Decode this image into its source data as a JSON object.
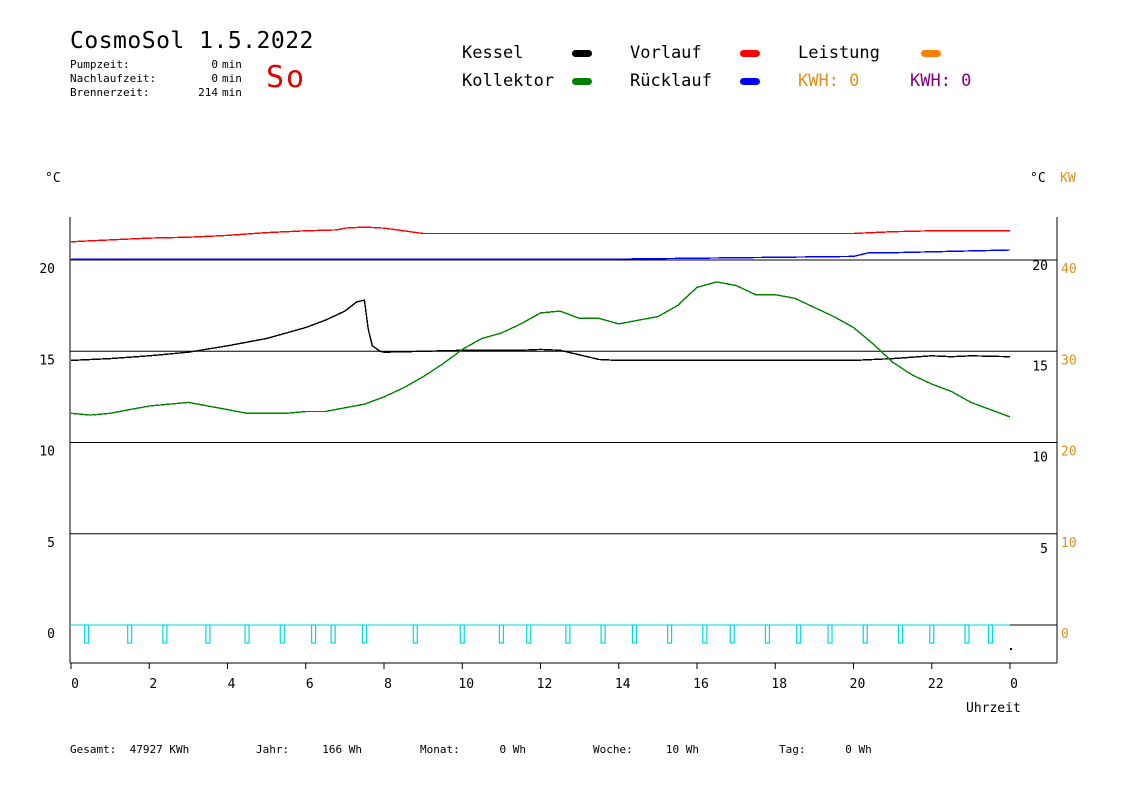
{
  "header": {
    "title": "CosmoSol 1.5.2022",
    "day": "So",
    "stats": [
      {
        "label": "Pumpzeit:",
        "value": "0",
        "unit": "min"
      },
      {
        "label": "Nachlaufzeit:",
        "value": "0",
        "unit": "min"
      },
      {
        "label": "Brennerzeit:",
        "value": "214",
        "unit": "min"
      }
    ]
  },
  "legend": {
    "kessel": {
      "label": "Kessel",
      "color": "#000000"
    },
    "kollektor": {
      "label": "Kollektor",
      "color": "#008000"
    },
    "vorlauf": {
      "label": "Vorlauf",
      "color": "#ff0000"
    },
    "ruecklauf": {
      "label": "Rücklauf",
      "color": "#0000ff"
    },
    "leistung": {
      "label": "Leistung",
      "color": "#ff8000"
    },
    "kwh_orange": "KWH: 0",
    "kwh_purple": "KWH: 0",
    "kwh_orange_color": "#e0901c",
    "kwh_purple_color": "#800080"
  },
  "axes": {
    "left_unit": "°C",
    "right_unit": "°C",
    "right_unit2": "KW",
    "x_label": "Uhrzeit"
  },
  "chart_data": {
    "type": "line",
    "xlabel": "Uhrzeit",
    "ylabel": "°C",
    "x_ticks": [
      "0",
      "2",
      "4",
      "6",
      "8",
      "10",
      "12",
      "14",
      "16",
      "18",
      "20",
      "22",
      "0"
    ],
    "xlim": [
      0,
      24
    ],
    "ylim": [
      -1.5,
      22.5
    ],
    "left_ticks": [
      0,
      5,
      10,
      15,
      20
    ],
    "right_ticks": [
      "5",
      "10",
      "15",
      "20"
    ],
    "right_ticks_y": [
      5,
      10,
      15,
      20.5
    ],
    "kw_ticks": [
      "0",
      "10",
      "20",
      "30",
      "40"
    ],
    "kw_ticks_y": [
      0,
      5,
      10,
      15,
      20
    ],
    "grid_lines_y": [
      0,
      5,
      10,
      15,
      20
    ],
    "series": [
      {
        "name": "Vorlauf",
        "color": "#ff0000",
        "x": [
          0,
          0.5,
          1,
          2,
          3,
          4,
          5,
          6,
          6.8,
          7,
          7.5,
          8,
          8.5,
          9,
          10,
          12,
          14,
          15,
          16,
          18,
          19.5,
          20,
          21,
          22,
          23,
          24
        ],
        "y": [
          21.0,
          21.05,
          21.1,
          21.2,
          21.25,
          21.35,
          21.5,
          21.6,
          21.65,
          21.75,
          21.8,
          21.75,
          21.6,
          21.45,
          21.45,
          21.45,
          21.45,
          21.45,
          21.45,
          21.45,
          21.45,
          21.45,
          21.55,
          21.6,
          21.6,
          21.6
        ]
      },
      {
        "name": "Rücklauf",
        "color": "#0000ff",
        "x": [
          0,
          2,
          4,
          6,
          8,
          10,
          12,
          14,
          16,
          18,
          20,
          20.4,
          21,
          22,
          23,
          24
        ],
        "y": [
          20.05,
          20.05,
          20.05,
          20.05,
          20.05,
          20.05,
          20.05,
          20.05,
          20.1,
          20.15,
          20.2,
          20.4,
          20.4,
          20.45,
          20.5,
          20.55
        ]
      },
      {
        "name": "Kessel",
        "color": "#000000",
        "x": [
          0,
          0.5,
          1,
          2,
          3,
          4,
          5,
          6,
          6.5,
          7,
          7.3,
          7.5,
          7.6,
          7.7,
          7.9,
          8,
          9,
          10,
          11,
          11.5,
          12,
          12.5,
          13,
          13.5,
          14,
          15,
          16,
          17,
          18,
          19,
          20,
          21,
          22,
          22.5,
          23,
          24
        ],
        "y": [
          14.5,
          14.55,
          14.6,
          14.75,
          14.95,
          15.3,
          15.7,
          16.3,
          16.7,
          17.2,
          17.7,
          17.8,
          16.2,
          15.3,
          15.0,
          14.95,
          15.0,
          15.05,
          15.05,
          15.05,
          15.1,
          15.05,
          14.8,
          14.55,
          14.5,
          14.5,
          14.5,
          14.5,
          14.5,
          14.5,
          14.5,
          14.6,
          14.75,
          14.7,
          14.75,
          14.7
        ]
      },
      {
        "name": "Kollektor",
        "color": "#008000",
        "x": [
          0,
          0.5,
          1,
          1.5,
          2,
          2.5,
          3,
          3.5,
          4,
          4.5,
          5,
          5.5,
          6,
          6.5,
          7,
          7.5,
          8,
          8.5,
          9,
          9.5,
          10,
          10.5,
          11,
          11.5,
          12,
          12.5,
          13,
          13.5,
          14,
          14.5,
          15,
          15.5,
          16,
          16.5,
          17,
          17.5,
          18,
          18.5,
          19,
          19.5,
          20,
          20.5,
          21,
          21.5,
          22,
          22.5,
          23,
          23.5,
          24
        ],
        "y": [
          11.6,
          11.5,
          11.6,
          11.8,
          12.0,
          12.1,
          12.2,
          12.0,
          11.8,
          11.6,
          11.6,
          11.6,
          11.7,
          11.7,
          11.9,
          12.1,
          12.5,
          13.0,
          13.6,
          14.3,
          15.1,
          15.7,
          16.0,
          16.5,
          17.1,
          17.2,
          16.8,
          16.8,
          16.5,
          16.7,
          16.9,
          17.5,
          18.5,
          18.8,
          18.6,
          18.1,
          18.1,
          17.9,
          17.4,
          16.9,
          16.3,
          15.4,
          14.4,
          13.7,
          13.2,
          12.8,
          12.2,
          11.8,
          11.4
        ]
      }
    ],
    "pump_pulses_x": [
      0.4,
      1.5,
      2.4,
      3.5,
      4.5,
      5.4,
      6.2,
      6.7,
      7.5,
      8.8,
      10.0,
      11.0,
      11.7,
      12.7,
      13.6,
      14.4,
      15.3,
      16.2,
      16.9,
      17.8,
      18.6,
      19.4,
      20.3,
      21.2,
      22.0,
      22.9,
      23.5
    ],
    "pump_color": "#00d8e0"
  },
  "footer": [
    {
      "label": "Gesamt:",
      "value": "47927 KWh"
    },
    {
      "label": "Jahr:",
      "value": "166 Wh"
    },
    {
      "label": "Monat:",
      "value": "0 Wh"
    },
    {
      "label": "Woche:",
      "value": "10 Wh"
    },
    {
      "label": "Tag:",
      "value": "0 Wh"
    }
  ]
}
